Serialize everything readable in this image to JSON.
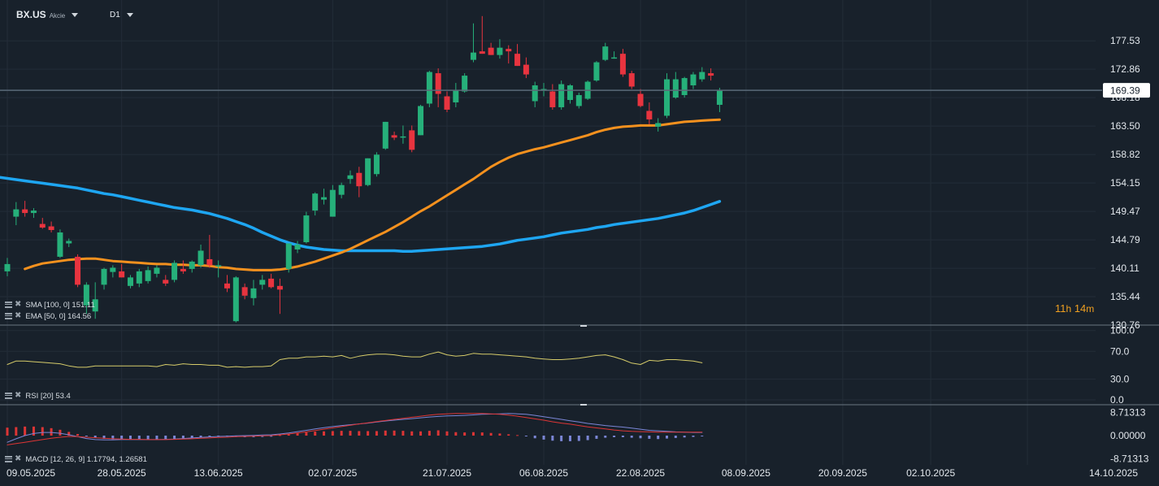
{
  "header": {
    "symbol": "BX.US",
    "instrument_type": "Akcie",
    "timeframe": "D1"
  },
  "countdown": {
    "hours": "11",
    "hours_unit": "h",
    "minutes": "14",
    "minutes_unit": "m"
  },
  "colors": {
    "background": "#18212b",
    "up": "#26b07a",
    "down": "#e8343f",
    "sma": "#1ea6f2",
    "ema": "#f5911e",
    "rsi": "#d6cc6a",
    "macd_line": "#7b86d6",
    "signal_line": "#dd3535",
    "price_line": "#5a6a78",
    "price_tag_bg": "#ffffff"
  },
  "indicators": {
    "sma": {
      "label": "SMA [100, 0] 151.11"
    },
    "ema": {
      "label": "EMA [50, 0] 164.56"
    },
    "rsi": {
      "label": "RSI [20] 53.4"
    },
    "macd": {
      "label": "MACD [12, 26, 9] 1.17794, 1.26581"
    }
  },
  "chart_data": [
    {
      "type": "candlestick",
      "symbol": "BX.US",
      "timeframe": "D1",
      "current_price": "169.39",
      "y_ticks": [
        "177.53",
        "172.86",
        "168.18",
        "163.50",
        "158.82",
        "154.15",
        "149.47",
        "144.79",
        "140.11",
        "135.44",
        "130.76"
      ],
      "y_tick_values": [
        177.53,
        172.86,
        168.18,
        163.5,
        158.82,
        154.15,
        149.47,
        144.79,
        140.11,
        135.44,
        130.76
      ],
      "x_ticks": [
        "09.05.2025",
        "28.05.2025",
        "13.06.2025",
        "02.07.2025",
        "21.07.2025",
        "06.08.2025",
        "22.08.2025",
        "08.09.2025",
        "20.09.2025",
        "02.10.2025",
        "14.10.2025"
      ],
      "x_tick_index": [
        0,
        13,
        24,
        37,
        50,
        61,
        72,
        84,
        95,
        105,
        116
      ],
      "ohlc": [
        [
          139.6,
          141.8,
          138.8,
          140.8
        ],
        [
          148.6,
          151.0,
          147.2,
          149.8
        ],
        [
          149.8,
          151.2,
          148.6,
          149.2
        ],
        [
          149.2,
          150.0,
          148.4,
          149.6
        ],
        [
          147.4,
          148.4,
          146.6,
          146.8
        ],
        [
          147.0,
          147.8,
          146.0,
          146.4
        ],
        [
          142.0,
          146.5,
          141.8,
          146.0
        ],
        [
          144.2,
          145.0,
          143.6,
          144.6
        ],
        [
          142.0,
          142.4,
          137.0,
          137.4
        ],
        [
          134.0,
          137.8,
          132.6,
          137.4
        ],
        [
          133.0,
          137.8,
          131.8,
          135.0
        ],
        [
          137.4,
          140.2,
          136.6,
          140.0
        ],
        [
          139.5,
          140.6,
          138.6,
          140.2
        ],
        [
          139.6,
          140.8,
          138.6,
          138.6
        ],
        [
          137.2,
          139.0,
          136.8,
          138.6
        ],
        [
          137.6,
          140.0,
          137.0,
          139.6
        ],
        [
          138.0,
          140.4,
          137.6,
          139.8
        ],
        [
          139.2,
          140.6,
          138.6,
          140.2
        ],
        [
          138.2,
          139.0,
          137.2,
          137.6
        ],
        [
          138.2,
          141.4,
          137.8,
          141.0
        ],
        [
          140.0,
          141.4,
          139.2,
          139.6
        ],
        [
          140.0,
          141.4,
          139.4,
          141.2
        ],
        [
          140.6,
          144.0,
          140.2,
          143.0
        ],
        [
          141.6,
          145.6,
          140.2,
          140.6
        ],
        [
          140.6,
          141.4,
          138.6,
          140.6
        ],
        [
          137.6,
          139.0,
          136.2,
          136.8
        ],
        [
          131.4,
          138.8,
          131.2,
          138.6
        ],
        [
          137.0,
          137.6,
          135.0,
          135.6
        ],
        [
          135.2,
          138.2,
          134.0,
          136.8
        ],
        [
          137.4,
          139.0,
          136.6,
          138.2
        ],
        [
          138.4,
          139.2,
          136.8,
          137.0
        ],
        [
          137.2,
          138.4,
          132.6,
          136.6
        ],
        [
          140.0,
          144.2,
          139.4,
          144.2
        ],
        [
          143.2,
          144.6,
          142.6,
          144.0
        ],
        [
          144.4,
          149.4,
          144.2,
          148.8
        ],
        [
          149.6,
          152.6,
          148.8,
          152.4
        ],
        [
          151.4,
          153.2,
          150.6,
          151.8
        ],
        [
          148.6,
          153.8,
          148.6,
          153.0
        ],
        [
          152.2,
          154.2,
          151.6,
          153.8
        ],
        [
          154.8,
          156.2,
          154.0,
          155.4
        ],
        [
          155.8,
          156.8,
          151.8,
          153.6
        ],
        [
          153.8,
          158.2,
          153.6,
          158.2
        ],
        [
          155.6,
          159.2,
          155.2,
          158.8
        ],
        [
          159.8,
          164.2,
          159.6,
          164.2
        ],
        [
          162.0,
          162.6,
          161.2,
          161.6
        ],
        [
          161.8,
          163.6,
          160.6,
          161.8
        ],
        [
          162.8,
          163.6,
          159.2,
          159.6
        ],
        [
          162.0,
          167.0,
          162.0,
          166.8
        ],
        [
          167.2,
          172.6,
          166.6,
          172.4
        ],
        [
          172.2,
          173.0,
          166.6,
          168.8
        ],
        [
          168.4,
          169.2,
          165.8,
          166.2
        ],
        [
          167.4,
          170.6,
          166.6,
          169.4
        ],
        [
          169.2,
          172.2,
          169.0,
          171.8
        ],
        [
          174.4,
          180.4,
          174.0,
          175.6
        ],
        [
          175.8,
          181.6,
          175.4,
          175.4
        ],
        [
          176.4,
          177.2,
          175.2,
          175.2
        ],
        [
          175.2,
          177.8,
          174.6,
          176.4
        ],
        [
          176.2,
          176.8,
          173.8,
          175.8
        ],
        [
          175.4,
          177.0,
          173.4,
          173.4
        ],
        [
          173.6,
          174.8,
          171.4,
          172.0
        ],
        [
          167.6,
          170.8,
          166.6,
          170.2
        ],
        [
          169.6,
          170.6,
          168.4,
          169.6
        ],
        [
          169.2,
          170.4,
          166.2,
          166.6
        ],
        [
          166.6,
          171.0,
          166.2,
          170.4
        ],
        [
          167.8,
          170.4,
          167.2,
          170.2
        ],
        [
          166.8,
          169.0,
          166.4,
          168.6
        ],
        [
          168.0,
          171.0,
          167.8,
          170.8
        ],
        [
          171.0,
          174.2,
          170.8,
          174.0
        ],
        [
          174.4,
          177.2,
          174.2,
          176.6
        ],
        [
          174.8,
          175.8,
          174.6,
          174.8
        ],
        [
          175.4,
          176.2,
          171.6,
          172.0
        ],
        [
          172.2,
          172.6,
          169.6,
          170.0
        ],
        [
          168.8,
          169.6,
          166.6,
          166.8
        ],
        [
          166.0,
          167.4,
          163.8,
          164.6
        ],
        [
          163.4,
          164.8,
          162.6,
          164.0
        ],
        [
          165.2,
          172.2,
          164.8,
          171.2
        ],
        [
          168.2,
          172.4,
          168.0,
          171.2
        ],
        [
          168.6,
          171.6,
          168.2,
          171.4
        ],
        [
          170.2,
          172.4,
          169.6,
          172.0
        ],
        [
          171.2,
          173.2,
          170.8,
          172.4
        ],
        [
          172.2,
          173.0,
          171.0,
          171.8
        ],
        [
          167.0,
          169.8,
          165.8,
          169.4
        ]
      ],
      "sma": {
        "name": "SMA [100, 0]",
        "values": [
          155.3,
          155.1,
          154.9,
          154.7,
          154.5,
          154.3,
          154.1,
          153.9,
          153.7,
          153.5,
          153.3,
          153.0,
          152.7,
          152.4,
          152.2,
          151.9,
          151.6,
          151.3,
          151.0,
          150.7,
          150.4,
          150.1,
          149.9,
          149.7,
          149.4,
          149.1,
          148.7,
          148.3,
          147.8,
          147.3,
          146.7,
          146.0,
          145.4,
          144.8,
          144.3,
          143.9,
          143.6,
          143.4,
          143.2,
          143.1,
          143.0,
          143.0,
          143.0,
          143.0,
          143.0,
          143.0,
          143.0,
          142.9,
          142.9,
          143.0,
          143.1,
          143.2,
          143.3,
          143.4,
          143.5,
          143.6,
          143.7,
          143.9,
          144.1,
          144.4,
          144.7,
          144.9,
          145.1,
          145.3,
          145.6,
          145.9,
          146.1,
          146.3,
          146.5,
          146.8,
          147.0,
          147.3,
          147.5,
          147.7,
          147.9,
          148.1,
          148.3,
          148.6,
          148.9,
          149.2,
          149.6,
          150.1,
          150.6,
          151.11
        ]
      },
      "ema": {
        "name": "EMA [50, 0]",
        "values": [
          140.0,
          140.5,
          140.9,
          141.1,
          141.3,
          141.5,
          141.6,
          141.7,
          141.7,
          141.5,
          141.3,
          141.2,
          141.1,
          141.0,
          140.9,
          140.8,
          140.8,
          140.7,
          140.7,
          140.6,
          140.6,
          140.5,
          140.3,
          140.2,
          140.0,
          139.9,
          139.8,
          139.8,
          139.8,
          139.9,
          140.1,
          140.4,
          140.8,
          141.2,
          141.7,
          142.2,
          142.7,
          143.3,
          144.0,
          144.7,
          145.4,
          146.1,
          146.9,
          147.7,
          148.6,
          149.5,
          150.3,
          151.2,
          152.1,
          153.0,
          153.9,
          154.8,
          155.8,
          156.8,
          157.6,
          158.3,
          158.9,
          159.3,
          159.7,
          160.0,
          160.4,
          160.8,
          161.2,
          161.6,
          162.0,
          162.5,
          162.9,
          163.2,
          163.4,
          163.5,
          163.6,
          163.6,
          163.6,
          163.8,
          164.0,
          164.2,
          164.3,
          164.4,
          164.5,
          164.56
        ]
      },
      "ylim": [
        130.76,
        182.2
      ]
    },
    {
      "type": "line",
      "name": "RSI [20]",
      "y_ticks": [
        "100.0",
        "70.0",
        "30.0",
        "0.0"
      ],
      "y_tick_values": [
        100,
        70,
        30,
        0
      ],
      "ylim": [
        0,
        100
      ],
      "values": [
        51,
        56,
        56,
        55,
        54,
        53,
        52,
        49,
        47,
        47,
        49,
        49,
        49,
        49,
        49,
        49,
        49,
        48,
        51,
        50,
        52,
        51,
        51,
        50,
        50,
        47,
        48,
        47,
        48,
        48,
        49,
        58,
        60,
        60,
        62,
        62,
        63,
        62,
        64,
        60,
        63,
        65,
        66,
        66,
        65,
        63,
        62,
        62,
        66,
        69,
        65,
        63,
        64,
        67,
        66,
        66,
        65,
        64,
        63,
        62,
        60,
        59,
        58,
        58,
        59,
        60,
        62,
        64,
        65,
        62,
        58,
        53,
        51,
        57,
        56,
        58,
        58,
        57,
        56,
        53.4
      ]
    },
    {
      "type": "bar",
      "name": "MACD [12, 26, 9]",
      "y_ticks": [
        "8.71313",
        "0.00000",
        "-8.71313"
      ],
      "y_tick_values": [
        8.71313,
        0,
        -8.71313
      ],
      "ylim": [
        -8.71313,
        8.71313
      ],
      "histogram": [
        3.0,
        3.2,
        3.4,
        3.4,
        3.2,
        2.8,
        2.2,
        1.4,
        0.6,
        -0.2,
        -0.9,
        -1.2,
        -1.4,
        -1.5,
        -1.5,
        -1.5,
        -1.5,
        -1.4,
        -1.3,
        -1.2,
        -1.0,
        -0.8,
        -0.6,
        -0.3,
        -0.1,
        -0.3,
        -0.5,
        -0.6,
        -0.6,
        -0.5,
        -0.4,
        0.2,
        0.5,
        0.9,
        1.2,
        1.5,
        1.6,
        1.7,
        1.8,
        1.8,
        1.7,
        1.7,
        1.7,
        1.9,
        1.9,
        1.8,
        1.6,
        1.6,
        1.8,
        2.0,
        1.6,
        1.3,
        1.2,
        1.3,
        1.2,
        1.0,
        0.8,
        0.5,
        0.2,
        -0.3,
        -1.0,
        -1.5,
        -1.9,
        -2.1,
        -2.1,
        -2.0,
        -1.7,
        -1.2,
        -0.8,
        -0.6,
        -0.6,
        -0.8,
        -1.0,
        -1.2,
        -1.3,
        -1.1,
        -0.9,
        -0.7,
        -0.5,
        -0.3
      ],
      "macd_line": [
        -2.5,
        -1.2,
        0.0,
        0.8,
        1.2,
        1.2,
        0.9,
        0.3,
        -0.4,
        -1.1,
        -1.5,
        -1.6,
        -1.6,
        -1.5,
        -1.5,
        -1.5,
        -1.5,
        -1.5,
        -1.4,
        -1.3,
        -1.1,
        -0.9,
        -0.7,
        -0.5,
        -0.3,
        -0.2,
        -0.1,
        0.0,
        0.1,
        0.2,
        0.3,
        0.6,
        1.0,
        1.5,
        2.0,
        2.5,
        3.0,
        3.4,
        3.8,
        4.1,
        4.4,
        4.7,
        5.1,
        5.5,
        5.8,
        6.1,
        6.4,
        6.7,
        7.0,
        7.2,
        7.4,
        7.5,
        7.6,
        7.8,
        8.0,
        8.1,
        8.2,
        8.3,
        8.2,
        8.0,
        7.6,
        7.1,
        6.6,
        6.1,
        5.6,
        5.1,
        4.6,
        4.2,
        3.8,
        3.5,
        3.2,
        2.8,
        2.4,
        2.0,
        1.8,
        1.6,
        1.4,
        1.3,
        1.2,
        1.18
      ],
      "signal_line": [
        -3.5,
        -3.0,
        -2.5,
        -2.0,
        -1.5,
        -1.0,
        -0.6,
        -0.3,
        -0.4,
        -0.6,
        -0.8,
        -1.0,
        -1.2,
        -1.3,
        -1.4,
        -1.4,
        -1.5,
        -1.5,
        -1.5,
        -1.4,
        -1.3,
        -1.2,
        -1.0,
        -0.9,
        -0.7,
        -0.6,
        -0.4,
        -0.3,
        -0.2,
        -0.1,
        0.0,
        0.3,
        0.6,
        1.0,
        1.4,
        1.9,
        2.4,
        2.9,
        3.4,
        3.9,
        4.4,
        4.8,
        5.3,
        5.7,
        6.1,
        6.5,
        6.9,
        7.3,
        7.7,
        8.0,
        8.2,
        8.3,
        8.3,
        8.3,
        8.3,
        8.2,
        8.0,
        7.7,
        7.3,
        6.8,
        6.3,
        5.8,
        5.2,
        4.7,
        4.3,
        3.8,
        3.3,
        2.9,
        2.5,
        2.1,
        1.8,
        1.6,
        1.5,
        1.4,
        1.3,
        1.3,
        1.3,
        1.27,
        1.27,
        1.27
      ]
    }
  ]
}
